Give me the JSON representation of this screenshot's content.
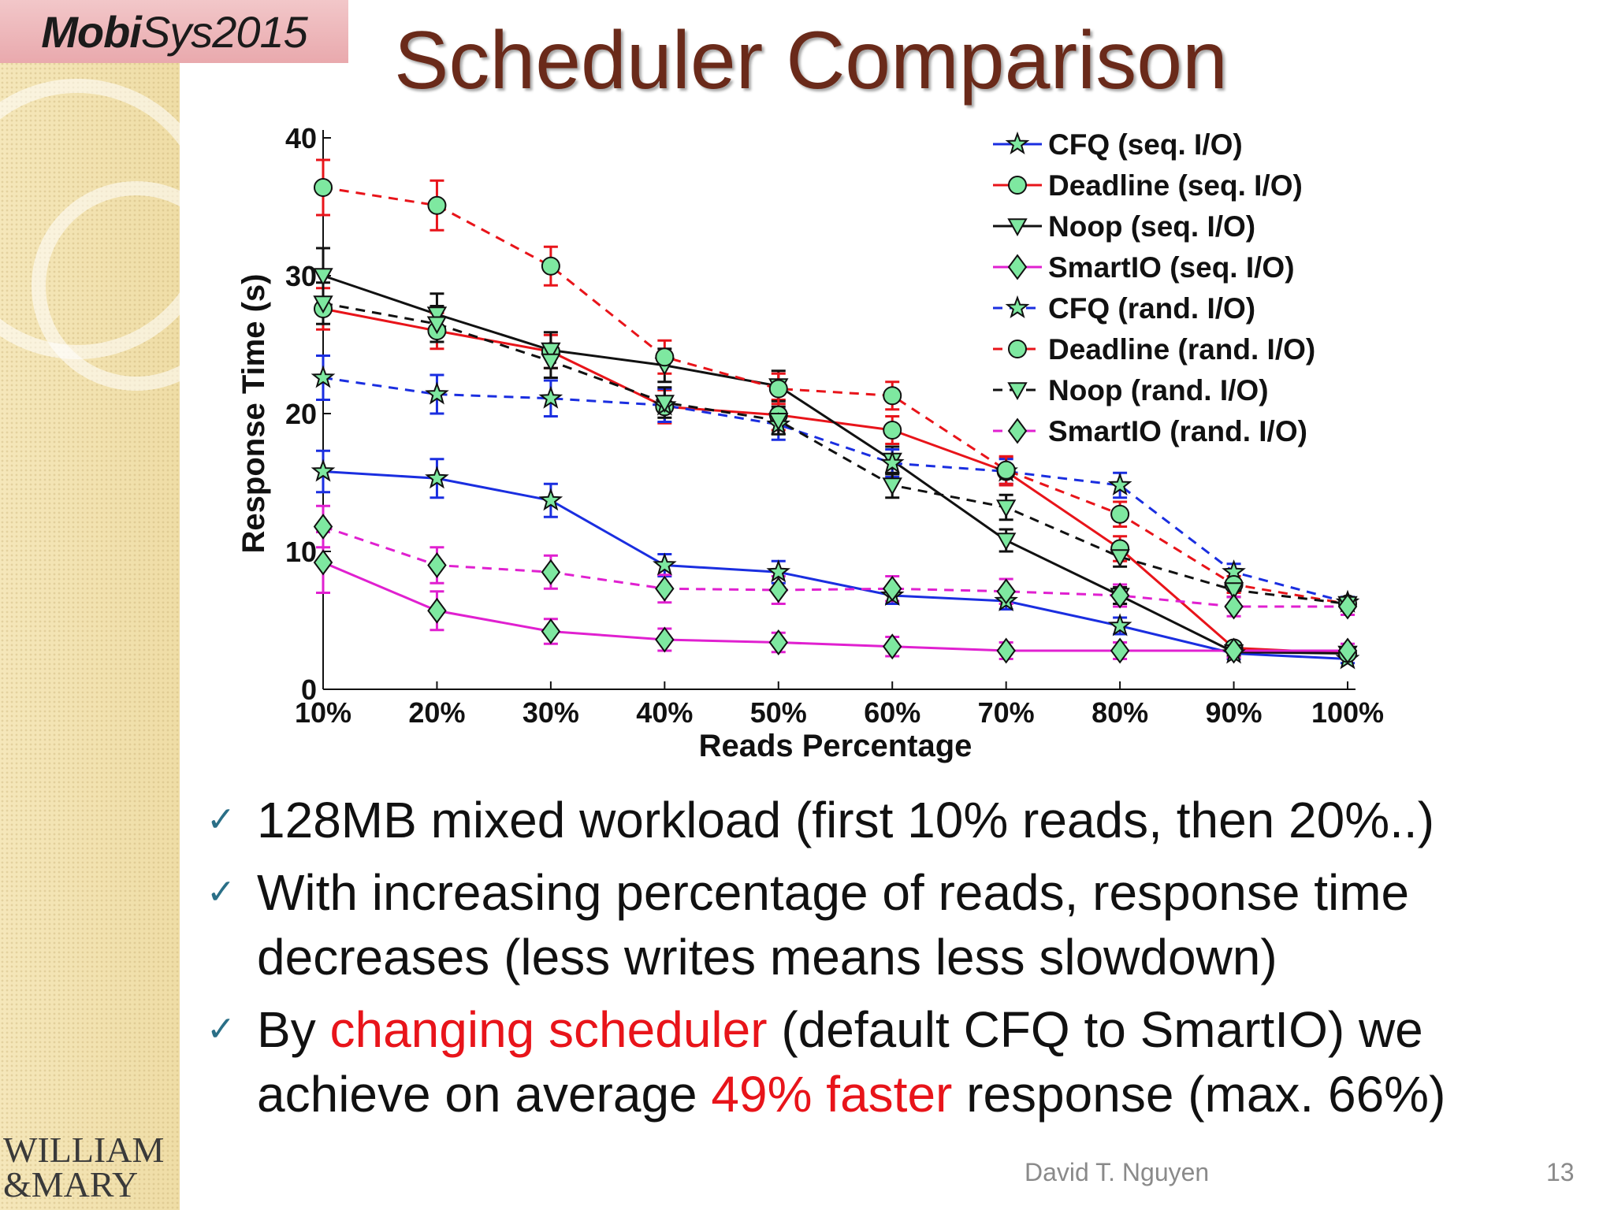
{
  "slide": {
    "title": "Scheduler Comparison",
    "logo_bold": "Mobi",
    "logo_rest": "Sys2015",
    "institution_line1": "WILLIAM",
    "institution_line2": "&MARY",
    "author": "David T. Nguyen",
    "page_number": "13"
  },
  "bullets": [
    {
      "parts": [
        {
          "text": "128MB mixed workload (first 10% reads, then 20%..)",
          "highlight": false
        }
      ]
    },
    {
      "parts": [
        {
          "text": "With increasing percentage of reads, response time decreases (less writes means less slowdown)",
          "highlight": false
        }
      ]
    },
    {
      "parts": [
        {
          "text": "By ",
          "highlight": false
        },
        {
          "text": "changing scheduler",
          "highlight": true
        },
        {
          "text": " (default CFQ to SmartIO) we achieve on average ",
          "highlight": false
        },
        {
          "text": "49% faster",
          "highlight": true
        },
        {
          "text": " response (max. 66%)",
          "highlight": false
        }
      ]
    }
  ],
  "colors": {
    "title": "#6a2a1a",
    "highlight": "#e8141a",
    "cfq": "#1a2ee0",
    "deadline": "#e8141a",
    "noop": "#111111",
    "smartio": "#e020d0",
    "marker_fill": "#7ee8a0"
  },
  "chart_data": {
    "type": "line",
    "title": "",
    "xlabel": "Reads Percentage",
    "ylabel": "Response Time (s)",
    "categories": [
      "10%",
      "20%",
      "30%",
      "40%",
      "50%",
      "60%",
      "70%",
      "80%",
      "90%",
      "100%"
    ],
    "ylim": [
      0,
      40
    ],
    "yticks": [
      0,
      10,
      20,
      30,
      40
    ],
    "grid": false,
    "legend_position": "top-right",
    "series": [
      {
        "name": "CFQ (seq. I/O)",
        "color": "#1a2ee0",
        "dash": false,
        "marker": "star",
        "values": [
          15.8,
          15.3,
          13.7,
          9.0,
          8.5,
          6.8,
          6.4,
          4.6,
          2.6,
          2.2
        ],
        "errors": [
          1.5,
          1.4,
          1.2,
          0.8,
          0.8,
          0.6,
          0.6,
          0.6,
          0.4,
          0.3
        ]
      },
      {
        "name": "Deadline (seq. I/O)",
        "color": "#e8141a",
        "dash": false,
        "marker": "circle",
        "values": [
          27.6,
          26.0,
          24.5,
          20.5,
          19.9,
          18.8,
          15.8,
          10.2,
          3.0,
          2.6
        ],
        "errors": [
          1.5,
          1.3,
          1.2,
          1.2,
          1.1,
          1.0,
          1.0,
          0.9,
          0.4,
          0.3
        ]
      },
      {
        "name": "Noop (seq. I/O)",
        "color": "#111111",
        "dash": false,
        "marker": "triangle",
        "values": [
          30.0,
          27.2,
          24.6,
          23.5,
          22.0,
          16.6,
          10.8,
          6.8,
          2.7,
          2.6
        ],
        "errors": [
          2.0,
          1.5,
          1.3,
          1.2,
          1.1,
          1.0,
          0.8,
          0.6,
          0.3,
          0.3
        ]
      },
      {
        "name": "SmartIO (seq. I/O)",
        "color": "#e020d0",
        "dash": false,
        "marker": "diamond",
        "values": [
          9.2,
          5.7,
          4.2,
          3.6,
          3.4,
          3.1,
          2.8,
          2.8,
          2.8,
          2.8
        ],
        "errors": [
          2.2,
          1.4,
          0.9,
          0.8,
          0.7,
          0.7,
          0.6,
          0.6,
          0.5,
          0.5
        ]
      },
      {
        "name": "CFQ (rand. I/O)",
        "color": "#1a2ee0",
        "dash": true,
        "marker": "star",
        "values": [
          22.6,
          21.4,
          21.1,
          20.6,
          19.2,
          16.4,
          15.8,
          14.8,
          8.5,
          6.3
        ],
        "errors": [
          1.6,
          1.4,
          1.3,
          1.2,
          1.1,
          1.0,
          0.9,
          0.9,
          0.6,
          0.4
        ]
      },
      {
        "name": "Deadline (rand. I/O)",
        "color": "#e8141a",
        "dash": true,
        "marker": "circle",
        "values": [
          36.4,
          35.1,
          30.7,
          24.1,
          21.8,
          21.3,
          15.9,
          12.7,
          7.6,
          6.2
        ],
        "errors": [
          2.0,
          1.8,
          1.4,
          1.2,
          1.1,
          1.0,
          1.0,
          0.9,
          0.6,
          0.4
        ]
      },
      {
        "name": "Noop (rand. I/O)",
        "color": "#111111",
        "dash": true,
        "marker": "triangle",
        "values": [
          28.0,
          26.5,
          23.8,
          20.8,
          19.5,
          14.8,
          13.2,
          9.6,
          7.2,
          6.2
        ],
        "errors": [
          1.5,
          1.3,
          1.2,
          1.1,
          1.0,
          0.9,
          0.9,
          0.7,
          0.5,
          0.4
        ]
      },
      {
        "name": "SmartIO (rand. I/O)",
        "color": "#e020d0",
        "dash": true,
        "marker": "diamond",
        "values": [
          11.8,
          9.0,
          8.5,
          7.3,
          7.2,
          7.3,
          7.1,
          6.8,
          6.0,
          6.0
        ],
        "errors": [
          1.5,
          1.3,
          1.2,
          1.0,
          1.0,
          0.9,
          0.9,
          0.8,
          0.7,
          0.6
        ]
      }
    ]
  }
}
